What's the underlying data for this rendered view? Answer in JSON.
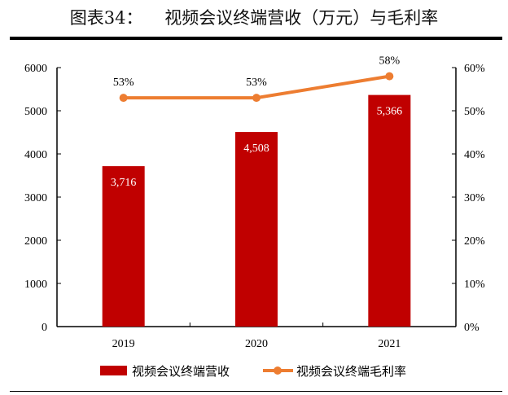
{
  "title": "图表34：    视频会议终端营收（万元）与毛利率",
  "chart_data": {
    "type": "bar+line",
    "categories": [
      "2019",
      "2020",
      "2021"
    ],
    "series": [
      {
        "name": "视频会议终端营收",
        "type": "bar",
        "axis": "left",
        "values": [
          3716,
          4508,
          5366
        ],
        "labels": [
          "3,716",
          "4,508",
          "5,366"
        ],
        "color": "#C00000"
      },
      {
        "name": "视频会议终端毛利率",
        "type": "line",
        "axis": "right",
        "values": [
          53,
          53,
          58
        ],
        "labels": [
          "53%",
          "53%",
          "58%"
        ],
        "color": "#ED7D31"
      }
    ],
    "left_axis": {
      "ylim": [
        0,
        6000
      ],
      "ticks": [
        "0",
        "1000",
        "2000",
        "3000",
        "4000",
        "5000",
        "6000"
      ]
    },
    "right_axis": {
      "ylim": [
        0,
        60
      ],
      "ticks": [
        "0%",
        "10%",
        "20%",
        "30%",
        "40%",
        "50%",
        "60%"
      ]
    },
    "grid": false,
    "legend": "bottom"
  }
}
